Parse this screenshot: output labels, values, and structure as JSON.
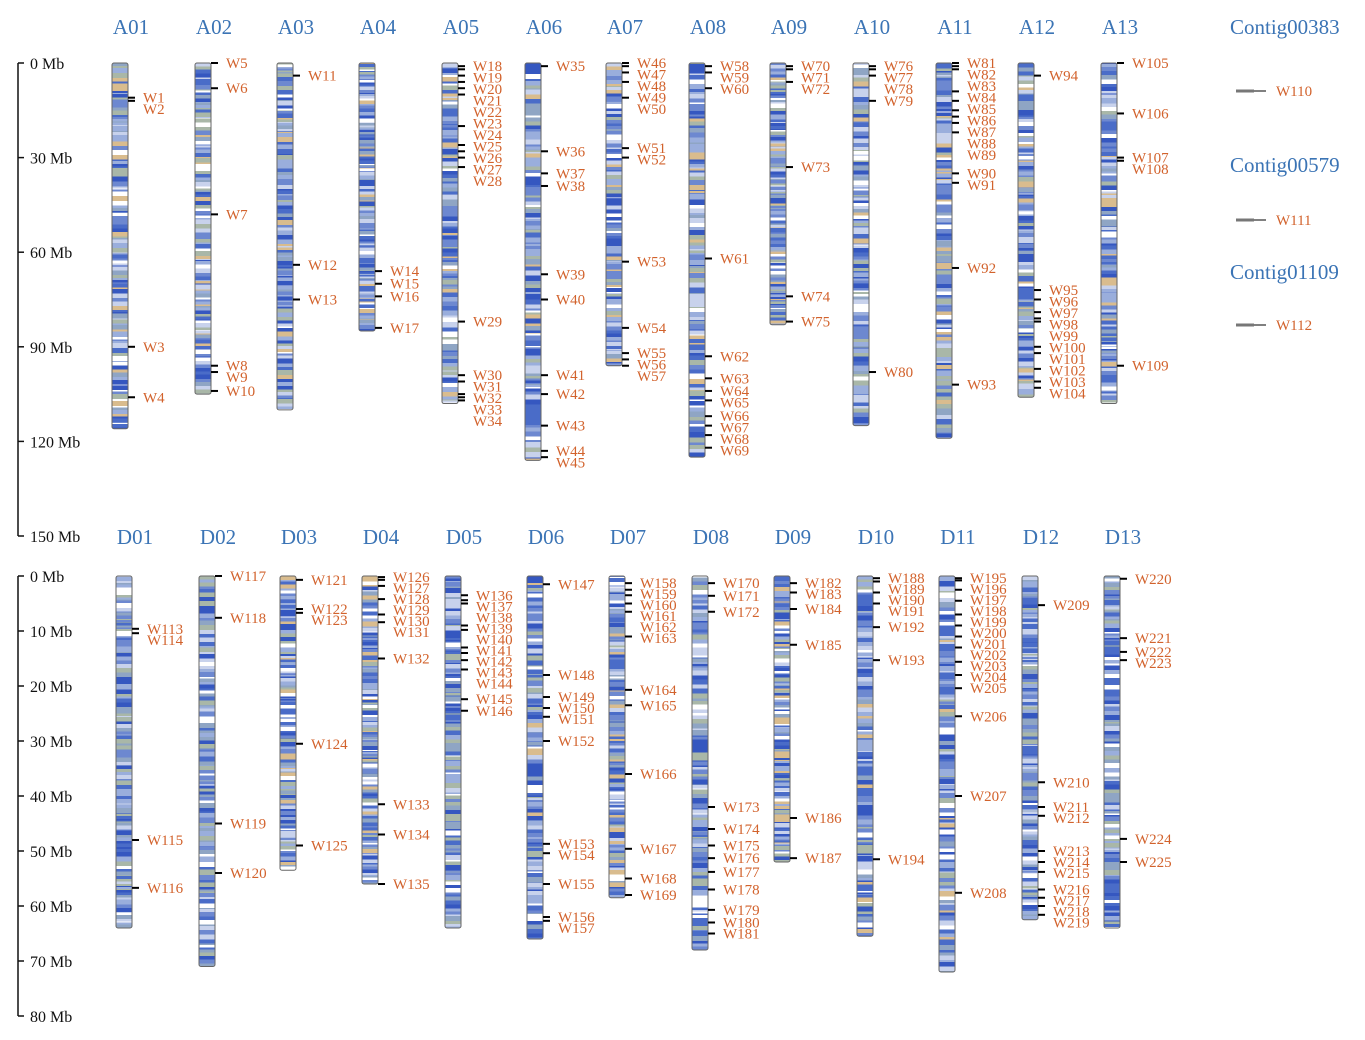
{
  "chart_data": [
    {
      "type": "ideogram",
      "ylim": [
        0,
        150
      ],
      "yticks": [
        {
          "value": 0,
          "label": "0 Mb"
        },
        {
          "value": 30,
          "label": "30 Mb"
        },
        {
          "value": 60,
          "label": "60 Mb"
        },
        {
          "value": 90,
          "label": "90 Mb"
        },
        {
          "value": 120,
          "label": "120 Mb"
        },
        {
          "value": 150,
          "label": "150 Mb"
        }
      ],
      "chromosomes": [
        {
          "name": "A01",
          "length": 116,
          "marker_labels": [
            "W1",
            "W2",
            "W3",
            "W4"
          ],
          "marker_pos": [
            11,
            12,
            90,
            106
          ]
        },
        {
          "name": "A02",
          "length": 105,
          "marker_labels": [
            "W5",
            "W6",
            "W7",
            "W8",
            "W9",
            "W10"
          ],
          "marker_pos": [
            0,
            8,
            48,
            96,
            98,
            104
          ]
        },
        {
          "name": "A03",
          "length": 110,
          "marker_labels": [
            "W11",
            "W12",
            "W13"
          ],
          "marker_pos": [
            4,
            64,
            75
          ]
        },
        {
          "name": "A04",
          "length": 85,
          "marker_labels": [
            "W14",
            "W15",
            "W16",
            "W17"
          ],
          "marker_pos": [
            66,
            70,
            74,
            84
          ]
        },
        {
          "name": "A05",
          "length": 108,
          "marker_labels": [
            "W18",
            "W19",
            "W20",
            "W21",
            "W22",
            "W23",
            "W24",
            "W25",
            "W26",
            "W27",
            "W28",
            "W29",
            "W30",
            "W31",
            "W32",
            "W33",
            "W34"
          ],
          "marker_pos": [
            1,
            2,
            4,
            6,
            8,
            10,
            20,
            26,
            28,
            30,
            33,
            82,
            99,
            101,
            105,
            106,
            107
          ]
        },
        {
          "name": "A06",
          "length": 126,
          "marker_labels": [
            "W35",
            "W36",
            "W37",
            "W38",
            "W39",
            "W40",
            "W41",
            "W42",
            "W43",
            "W44",
            "W45"
          ],
          "marker_pos": [
            1,
            28,
            35,
            39,
            67,
            75,
            99,
            105,
            115,
            123,
            125
          ]
        },
        {
          "name": "A07",
          "length": 96,
          "marker_labels": [
            "W46",
            "W47",
            "W48",
            "W49",
            "W50",
            "W51",
            "W52",
            "W53",
            "W54",
            "W55",
            "W56",
            "W57"
          ],
          "marker_pos": [
            0,
            1,
            3,
            6,
            11,
            27,
            30,
            63,
            84,
            92,
            94,
            96
          ]
        },
        {
          "name": "A08",
          "length": 125,
          "marker_labels": [
            "W58",
            "W59",
            "W60",
            "W61",
            "W62",
            "W63",
            "W64",
            "W65",
            "W66",
            "W67",
            "W68",
            "W69"
          ],
          "marker_pos": [
            1,
            3,
            8,
            62,
            93,
            100,
            104,
            107,
            112,
            115,
            118,
            122
          ]
        },
        {
          "name": "A09",
          "length": 83,
          "marker_labels": [
            "W70",
            "W71",
            "W72",
            "W73",
            "W74",
            "W75"
          ],
          "marker_pos": [
            1,
            2,
            6,
            33,
            74,
            82
          ]
        },
        {
          "name": "A10",
          "length": 115,
          "marker_labels": [
            "W76",
            "W77",
            "W78",
            "W79",
            "W80"
          ],
          "marker_pos": [
            1,
            2,
            4,
            12,
            98
          ]
        },
        {
          "name": "A11",
          "length": 119,
          "marker_labels": [
            "W81",
            "W82",
            "W83",
            "W84",
            "W85",
            "W86",
            "W87",
            "W88",
            "W89",
            "W90",
            "W91",
            "W92",
            "W93"
          ],
          "marker_pos": [
            0,
            1,
            2,
            9,
            12,
            15,
            17,
            19,
            22,
            35,
            38,
            65,
            102
          ]
        },
        {
          "name": "A12",
          "length": 106,
          "marker_labels": [
            "W94",
            "W95",
            "W96",
            "W97",
            "W98",
            "W99",
            "W100",
            "W101",
            "W102",
            "W103",
            "W104"
          ],
          "marker_pos": [
            4,
            72,
            75,
            79,
            81,
            82,
            90,
            92,
            97,
            101,
            103
          ]
        },
        {
          "name": "A13",
          "length": 108,
          "marker_labels": [
            "W105",
            "W106",
            "W107",
            "W108",
            "W109"
          ],
          "marker_pos": [
            0,
            16,
            30,
            31,
            96
          ]
        }
      ],
      "contigs": [
        {
          "name": "Contig00383",
          "marker": "W110"
        },
        {
          "name": "Contig00579",
          "marker": "W111"
        },
        {
          "name": "Contig01109",
          "marker": "W112"
        }
      ]
    },
    {
      "type": "ideogram",
      "ylim": [
        0,
        80
      ],
      "yticks": [
        {
          "value": 0,
          "label": "0 Mb"
        },
        {
          "value": 10,
          "label": "10 Mb"
        },
        {
          "value": 20,
          "label": "20 Mb"
        },
        {
          "value": 30,
          "label": "30 Mb"
        },
        {
          "value": 40,
          "label": "40 Mb"
        },
        {
          "value": 50,
          "label": "50 Mb"
        },
        {
          "value": 60,
          "label": "60 Mb"
        },
        {
          "value": 70,
          "label": "70 Mb"
        },
        {
          "value": 80,
          "label": "80 Mb"
        }
      ],
      "chromosomes": [
        {
          "name": "D01",
          "length": 64,
          "marker_labels": [
            "W113",
            "W114",
            "W115",
            "W116"
          ],
          "marker_pos": [
            9.6,
            10.4,
            48,
            56.7
          ]
        },
        {
          "name": "D02",
          "length": 71,
          "marker_labels": [
            "W117",
            "W118",
            "W119",
            "W120"
          ],
          "marker_pos": [
            0,
            7.6,
            45,
            54
          ]
        },
        {
          "name": "D03",
          "length": 53.5,
          "marker_labels": [
            "W121",
            "W122",
            "W123",
            "W124",
            "W125"
          ],
          "marker_pos": [
            0.7,
            6,
            6.7,
            30.5,
            49
          ]
        },
        {
          "name": "D04",
          "length": 56,
          "marker_labels": [
            "W126",
            "W127",
            "W128",
            "W129",
            "W130",
            "W131",
            "W132",
            "W133",
            "W134",
            "W135"
          ],
          "marker_pos": [
            0.2,
            0.7,
            1.8,
            4.2,
            7,
            8.4,
            15,
            41.5,
            47,
            56
          ]
        },
        {
          "name": "D05",
          "length": 64,
          "marker_labels": [
            "W136",
            "W137",
            "W138",
            "W139",
            "W140",
            "W141",
            "W142",
            "W143",
            "W144",
            "W145",
            "W146"
          ],
          "marker_pos": [
            3.5,
            4.4,
            5,
            9,
            9.8,
            13,
            14,
            15.3,
            17,
            22.4,
            24.5
          ]
        },
        {
          "name": "D06",
          "length": 66,
          "marker_labels": [
            "W147",
            "W148",
            "W149",
            "W150",
            "W151",
            "W152",
            "W153",
            "W154",
            "W155",
            "W156",
            "W157"
          ],
          "marker_pos": [
            1.5,
            18,
            22,
            24,
            25.6,
            30,
            48.7,
            50.4,
            56,
            62,
            62.7
          ]
        },
        {
          "name": "D07",
          "length": 58.5,
          "marker_labels": [
            "W158",
            "W159",
            "W160",
            "W161",
            "W162",
            "W163",
            "W164",
            "W165",
            "W166",
            "W167",
            "W168",
            "W169"
          ],
          "marker_pos": [
            1.3,
            2.5,
            3.5,
            5,
            6.5,
            11,
            20.7,
            23.5,
            36,
            49.6,
            55,
            58
          ]
        },
        {
          "name": "D08",
          "length": 68,
          "marker_labels": [
            "W170",
            "W171",
            "W172",
            "W173",
            "W174",
            "W175",
            "W176",
            "W177",
            "W178",
            "W179",
            "W180",
            "W181"
          ],
          "marker_pos": [
            1.3,
            3.6,
            6.5,
            42,
            46,
            49,
            51.3,
            53.8,
            57,
            60.7,
            63,
            65
          ]
        },
        {
          "name": "D09",
          "length": 52,
          "marker_labels": [
            "W182",
            "W183",
            "W184",
            "W185",
            "W186",
            "W187"
          ],
          "marker_pos": [
            1.3,
            3,
            6,
            12.5,
            44,
            51.3
          ]
        },
        {
          "name": "D10",
          "length": 65.5,
          "marker_labels": [
            "W188",
            "W189",
            "W190",
            "W191",
            "W192",
            "W193",
            "W194"
          ],
          "marker_pos": [
            0.4,
            1,
            3,
            5,
            9.3,
            15.3,
            51.5
          ]
        },
        {
          "name": "D11",
          "length": 72,
          "marker_labels": [
            "W195",
            "W196",
            "W197",
            "W198",
            "W199",
            "W200",
            "W201",
            "W202",
            "W203",
            "W204",
            "W205",
            "W206",
            "W207",
            "W208"
          ],
          "marker_pos": [
            0.4,
            0.8,
            2.5,
            4.5,
            7,
            9,
            11,
            13,
            15.6,
            18,
            20.4,
            25.5,
            40,
            57.6
          ]
        },
        {
          "name": "D12",
          "length": 62.5,
          "marker_labels": [
            "W209",
            "W210",
            "W211",
            "W212",
            "W213",
            "W214",
            "W215",
            "W216",
            "W217",
            "W218",
            "W219"
          ],
          "marker_pos": [
            5.3,
            37.5,
            42,
            43.6,
            50,
            52,
            53.8,
            57,
            58.5,
            60,
            61.6
          ]
        },
        {
          "name": "D13",
          "length": 64,
          "marker_labels": [
            "W220",
            "W221",
            "W222",
            "W223",
            "W224",
            "W225"
          ],
          "marker_pos": [
            0.5,
            11.3,
            13.8,
            15.3,
            47.8,
            52
          ]
        }
      ]
    }
  ]
}
